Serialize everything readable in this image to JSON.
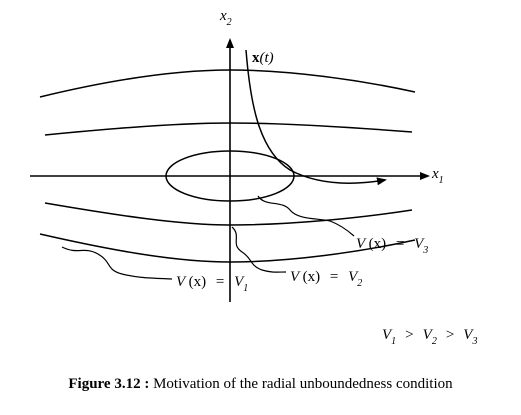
{
  "axes": {
    "x_label": "x",
    "x_sub": "1",
    "y_label": "x",
    "y_sub": "2"
  },
  "trajectory": {
    "label_bold": "x",
    "label_rest": "(t)"
  },
  "levels": [
    {
      "lhs": "V",
      "arg": "(x)",
      "eq": "=",
      "rhs": "V",
      "sub": "3"
    },
    {
      "lhs": "V",
      "arg": "(x)",
      "eq": "=",
      "rhs": "V",
      "sub": "2"
    },
    {
      "lhs": "V",
      "arg": "(x)",
      "eq": "=",
      "rhs": "V",
      "sub": "1"
    }
  ],
  "inequality": {
    "a": "V",
    "a_sub": "1",
    "op1": ">",
    "b": "V",
    "b_sub": "2",
    "op2": ">",
    "c": "V",
    "c_sub": "3"
  },
  "caption": {
    "label": "Figure 3.12 :",
    "text": " Motivation of the radial unboundedness condition"
  }
}
